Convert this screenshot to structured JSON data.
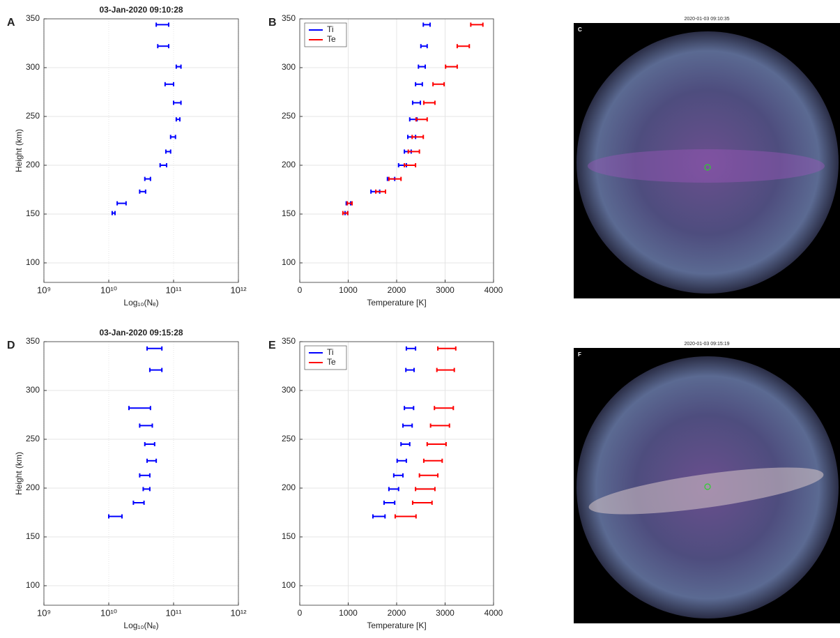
{
  "chart_data": [
    {
      "type": "errorbar",
      "panel_label": "A",
      "title": "03-Jan-2020 09:10:28",
      "x_label": "Log₁₀(Nₑ)",
      "y_label": "Height (km)",
      "xscale": "log",
      "xlim": [
        1000000000,
        1000000000000
      ],
      "xticks": [
        {
          "value": 1000000000,
          "label": "10⁹"
        },
        {
          "value": 10000000000,
          "label": "10¹⁰"
        },
        {
          "value": 100000000000,
          "label": "10¹¹"
        },
        {
          "value": 1000000000000,
          "label": "10¹²"
        }
      ],
      "ylim": [
        80,
        350
      ],
      "yticks": [
        100,
        150,
        200,
        250,
        300,
        350
      ],
      "grid": true,
      "series": [
        {
          "color": "#0000ff",
          "y": [
            344,
            322,
            301,
            283,
            264,
            247,
            229,
            214,
            200,
            186,
            173,
            161,
            151
          ],
          "x_low": [
            54000000000,
            57000000000,
            110000000000,
            74000000000,
            100000000000,
            110000000000,
            90000000000,
            76000000000,
            62000000000,
            36000000000,
            30000000000,
            13500000000,
            11300000000
          ],
          "x_high": [
            84000000000,
            84000000000,
            130000000000,
            100000000000,
            130000000000,
            125000000000,
            107000000000,
            90000000000,
            78000000000,
            44000000000,
            37000000000,
            18500000000,
            12500000000
          ]
        }
      ]
    },
    {
      "type": "errorbar",
      "panel_label": "B",
      "x_label": "Temperature [K]",
      "xscale": "linear",
      "xlim": [
        0,
        4000
      ],
      "xticks": [
        0,
        1000,
        2000,
        3000,
        4000
      ],
      "ylim": [
        80,
        350
      ],
      "yticks": [
        100,
        150,
        200,
        250,
        300,
        350
      ],
      "grid": true,
      "legend": "upper left",
      "series": [
        {
          "name": "Ti",
          "color": "#0000ff",
          "y": [
            344,
            322,
            301,
            283,
            264,
            247,
            229,
            214,
            200,
            186,
            173,
            161,
            151
          ],
          "x_low": [
            2550,
            2500,
            2450,
            2390,
            2330,
            2270,
            2230,
            2160,
            2040,
            1810,
            1470,
            960,
            935
          ],
          "x_high": [
            2690,
            2630,
            2590,
            2530,
            2490,
            2420,
            2390,
            2300,
            2200,
            1960,
            1650,
            1050,
            990
          ]
        },
        {
          "name": "Te",
          "color": "#ff0000",
          "y": [
            344,
            322,
            301,
            283,
            264,
            247,
            229,
            214,
            200,
            186,
            173,
            161,
            151
          ],
          "x_low": [
            3530,
            3250,
            3010,
            2750,
            2560,
            2400,
            2320,
            2240,
            2160,
            1840,
            1570,
            980,
            890
          ],
          "x_high": [
            3780,
            3500,
            3250,
            2980,
            2790,
            2630,
            2550,
            2470,
            2390,
            2090,
            1770,
            1080,
            990
          ]
        }
      ]
    },
    {
      "type": "errorbar",
      "panel_label": "D",
      "title": "03-Jan-2020 09:15:28",
      "x_label": "Log₁₀(Nₑ)",
      "y_label": "Height (km)",
      "xscale": "log",
      "xlim": [
        1000000000,
        1000000000000
      ],
      "xticks": [
        {
          "value": 1000000000,
          "label": "10⁹"
        },
        {
          "value": 10000000000,
          "label": "10¹⁰"
        },
        {
          "value": 100000000000,
          "label": "10¹¹"
        },
        {
          "value": 1000000000000,
          "label": "10¹²"
        }
      ],
      "ylim": [
        80,
        350
      ],
      "yticks": [
        100,
        150,
        200,
        250,
        300,
        350
      ],
      "grid": true,
      "series": [
        {
          "color": "#0000ff",
          "y": [
            343,
            321,
            282,
            264,
            245,
            228,
            213,
            199,
            185,
            171
          ],
          "x_low": [
            39000000000,
            43000000000,
            20500000000,
            30000000000,
            36000000000,
            39000000000,
            30000000000,
            34000000000,
            24000000000,
            10000000000
          ],
          "x_high": [
            66000000000,
            66000000000,
            44000000000,
            47000000000,
            51000000000,
            54000000000,
            43000000000,
            43000000000,
            35000000000,
            16000000000
          ]
        }
      ]
    },
    {
      "type": "errorbar",
      "panel_label": "E",
      "x_label": "Temperature [K]",
      "xscale": "linear",
      "xlim": [
        0,
        4000
      ],
      "xticks": [
        0,
        1000,
        2000,
        3000,
        4000
      ],
      "ylim": [
        80,
        350
      ],
      "yticks": [
        100,
        150,
        200,
        250,
        300,
        350
      ],
      "grid": true,
      "legend": "upper left",
      "series": [
        {
          "name": "Ti",
          "color": "#0000ff",
          "y": [
            343,
            321,
            282,
            264,
            245,
            228,
            213,
            199,
            185,
            171
          ],
          "x_low": [
            2200,
            2190,
            2160,
            2130,
            2090,
            2010,
            1940,
            1840,
            1740,
            1510
          ],
          "x_high": [
            2390,
            2360,
            2350,
            2320,
            2270,
            2200,
            2130,
            2040,
            1960,
            1760
          ]
        },
        {
          "name": "Te",
          "color": "#ff0000",
          "y": [
            343,
            321,
            282,
            264,
            245,
            228,
            213,
            199,
            185,
            171
          ],
          "x_low": [
            2850,
            2830,
            2780,
            2700,
            2630,
            2560,
            2470,
            2390,
            2330,
            1970
          ],
          "x_high": [
            3220,
            3190,
            3170,
            3090,
            3020,
            2940,
            2850,
            2790,
            2730,
            2400
          ]
        }
      ]
    }
  ],
  "images": [
    {
      "panel_label": "C",
      "title": "2020-01-03 09:10:35"
    },
    {
      "panel_label": "F",
      "title": "2020-01-03 09:15:19"
    }
  ]
}
